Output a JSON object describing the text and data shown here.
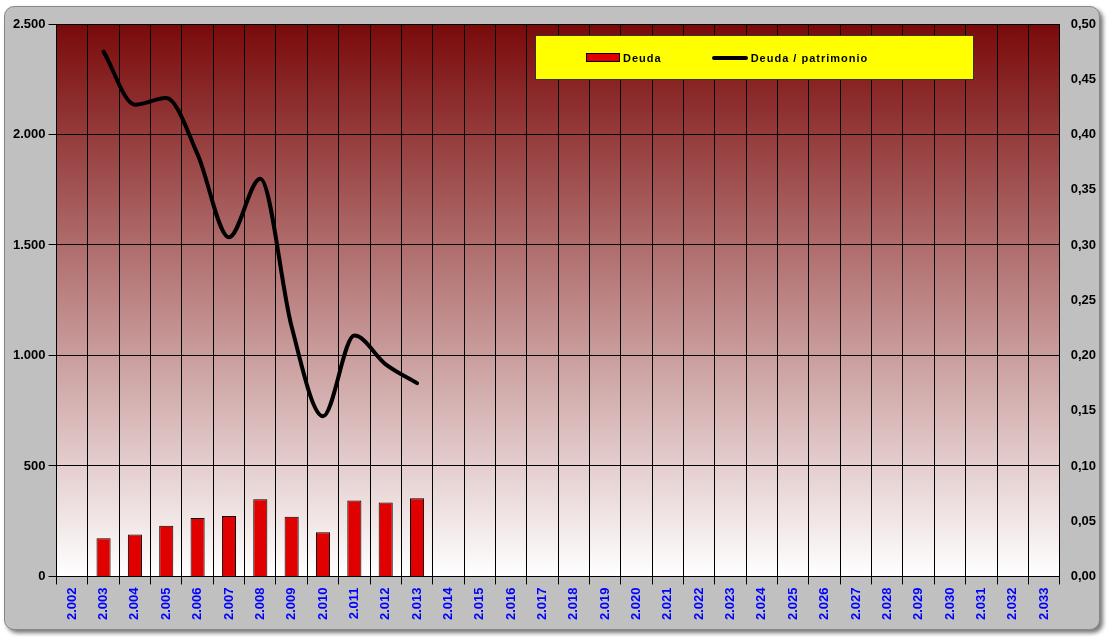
{
  "chart_data": {
    "type": "bar",
    "categories": [
      "2.002",
      "2.003",
      "2.004",
      "2.005",
      "2.006",
      "2.007",
      "2.008",
      "2.009",
      "2.010",
      "2.011",
      "2.012",
      "2.013",
      "2.014",
      "2.015",
      "2.016",
      "2.017",
      "2.018",
      "2.019",
      "2.020",
      "2.021",
      "2.022",
      "2.023",
      "2.024",
      "2.025",
      "2.026",
      "2.027",
      "2.028",
      "2.029",
      "2.030",
      "2.031",
      "2.032",
      "2.033"
    ],
    "series": [
      {
        "name": "Deuda",
        "color": "#e00000",
        "values": [
          null,
          173,
          190,
          230,
          265,
          274,
          349,
          270,
          200,
          344,
          335,
          354,
          null,
          null,
          null,
          null,
          null,
          null,
          null,
          null,
          null,
          null,
          null,
          null,
          null,
          null,
          null,
          null,
          null,
          null,
          null,
          null
        ]
      },
      {
        "name": "Deuda / patrimonio",
        "type": "line",
        "axis": "y2",
        "color": "#000000",
        "values": [
          null,
          0.475,
          0.427,
          0.433,
          0.382,
          0.307,
          0.36,
          0.226,
          0.145,
          0.218,
          0.192,
          0.175,
          null,
          null,
          null,
          null,
          null,
          null,
          null,
          null,
          null,
          null,
          null,
          null,
          null,
          null,
          null,
          null,
          null,
          null,
          null,
          null
        ]
      }
    ],
    "ylim": [
      0,
      2500
    ],
    "yticks": [
      {
        "value": 0,
        "label": "0"
      },
      {
        "value": 500,
        "label": "500"
      },
      {
        "value": 1000,
        "label": "1.000"
      },
      {
        "value": 1500,
        "label": "1.500"
      },
      {
        "value": 2000,
        "label": "2.000"
      },
      {
        "value": 2500,
        "label": "2.500"
      }
    ],
    "y2lim": [
      0,
      0.5
    ],
    "y2ticks": [
      {
        "value": 0,
        "label": "0,00"
      },
      {
        "value": 0.05,
        "label": "0,05"
      },
      {
        "value": 0.1,
        "label": "0,10"
      },
      {
        "value": 0.15,
        "label": "0,15"
      },
      {
        "value": 0.2,
        "label": "0,20"
      },
      {
        "value": 0.25,
        "label": "0,25"
      },
      {
        "value": 0.3,
        "label": "0,30"
      },
      {
        "value": 0.35,
        "label": "0,35"
      },
      {
        "value": 0.4,
        "label": "0,40"
      },
      {
        "value": 0.45,
        "label": "0,45"
      },
      {
        "value": 0.5,
        "label": "0,50"
      }
    ],
    "grid": true,
    "legend": "top right",
    "marker": "none",
    "line_style": "solid"
  }
}
